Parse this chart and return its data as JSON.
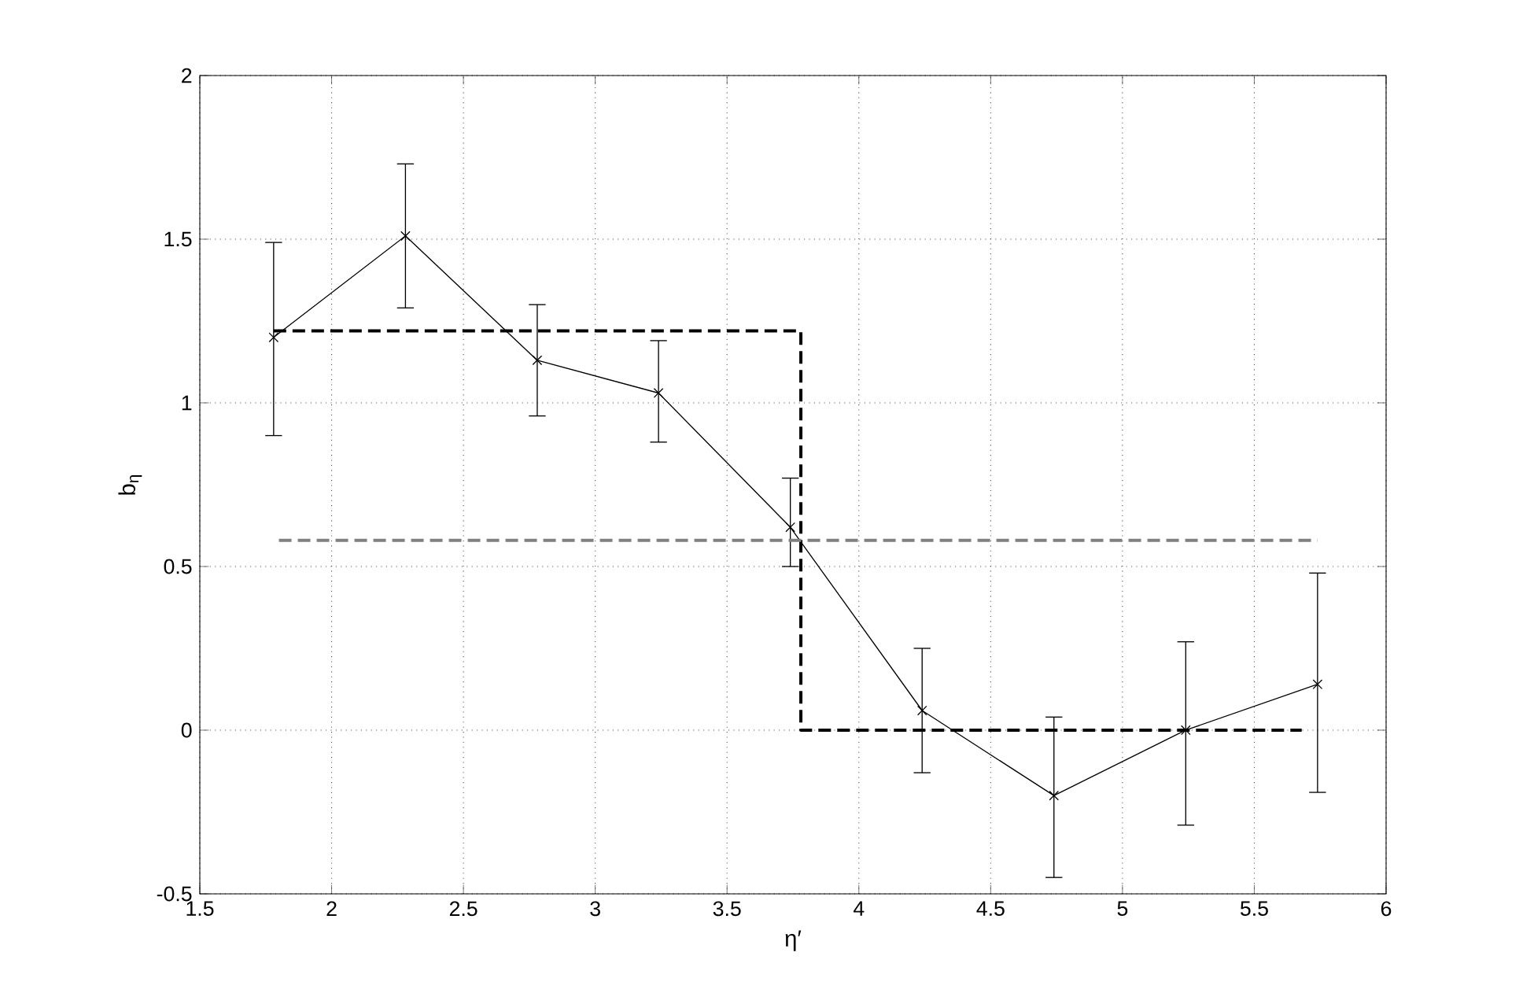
{
  "chart_data": {
    "type": "line",
    "xlabel": "η′",
    "ylabel": "b$_{η}$",
    "xlim": [
      1.5,
      6
    ],
    "xticks": [
      1.5,
      2,
      2.5,
      3,
      3.5,
      4,
      4.5,
      5,
      5.5,
      6
    ],
    "ylim": [
      -0.5,
      2
    ],
    "yticks": [
      -0.5,
      0,
      0.5,
      1,
      1.5,
      2
    ],
    "grid": true,
    "series": [
      {
        "color": "#000000",
        "marker": "cross",
        "line_style": "solid",
        "x": [
          1.78,
          2.28,
          2.78,
          3.24,
          3.74,
          4.24,
          4.74,
          5.24,
          5.74
        ],
        "values": [
          1.2,
          1.51,
          1.13,
          1.03,
          0.62,
          0.06,
          -0.2,
          0,
          0.14
        ],
        "errors": [
          [
            0.9,
            1.49
          ],
          [
            1.29,
            1.73
          ],
          [
            0.96,
            1.3
          ],
          [
            0.88,
            1.19
          ],
          [
            0.5,
            0.77
          ],
          [
            -0.13,
            0.25
          ],
          [
            -0.45,
            0.04
          ],
          [
            -0.29,
            0.27
          ],
          [
            -0.19,
            0.48
          ]
        ]
      },
      {
        "color": "#000000",
        "marker": "none",
        "line_style": "dashed",
        "x": [
          1.78,
          3.78,
          3.78,
          5.68
        ],
        "values": [
          1.22,
          1.22,
          0,
          0
        ]
      },
      {
        "color": "#808080",
        "marker": "none",
        "line_style": "dashed",
        "x": [
          1.8,
          5.74
        ],
        "values": [
          0.58,
          0.58
        ]
      }
    ]
  }
}
